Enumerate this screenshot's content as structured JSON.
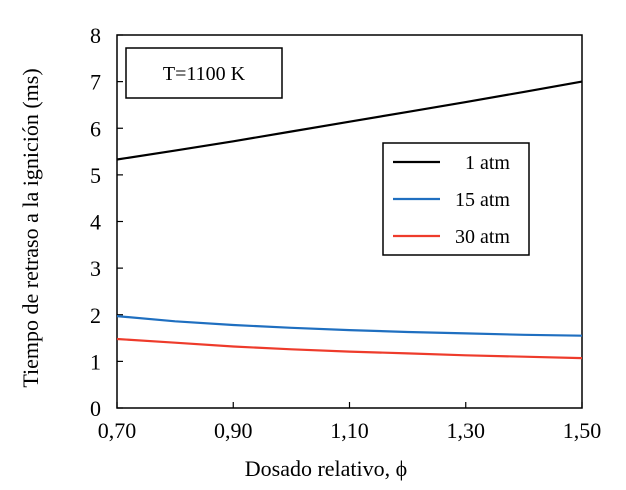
{
  "chart_data": {
    "type": "line",
    "title": "",
    "xlabel": "Dosado relativo, ϕ",
    "ylabel": "Tiempo de retraso a la ignición (ms)",
    "xlim": [
      0.7,
      1.5
    ],
    "ylim": [
      0,
      8
    ],
    "x_ticks": [
      0.7,
      0.9,
      1.1,
      1.3,
      1.5
    ],
    "x_tick_labels": [
      "0,70",
      "0,90",
      "1,10",
      "1,30",
      "1,50"
    ],
    "y_ticks": [
      0,
      1,
      2,
      3,
      4,
      5,
      6,
      7,
      8
    ],
    "y_tick_labels": [
      "0",
      "1",
      "2",
      "3",
      "4",
      "5",
      "6",
      "7",
      "8"
    ],
    "grid": false,
    "legend_position": "right",
    "annotation": "T=1100 K",
    "x": [
      0.7,
      0.8,
      0.9,
      1.0,
      1.1,
      1.2,
      1.3,
      1.4,
      1.5
    ],
    "series": [
      {
        "name": "1 atm",
        "color": "#000000",
        "values": [
          5.33,
          5.52,
          5.72,
          5.93,
          6.14,
          6.35,
          6.56,
          6.78,
          7.0
        ]
      },
      {
        "name": "15 atm",
        "color": "#1f6fc0",
        "values": [
          1.97,
          1.86,
          1.78,
          1.72,
          1.67,
          1.63,
          1.6,
          1.57,
          1.55
        ]
      },
      {
        "name": "30 atm",
        "color": "#ee3b2b",
        "values": [
          1.48,
          1.4,
          1.32,
          1.26,
          1.21,
          1.17,
          1.13,
          1.1,
          1.07
        ]
      }
    ]
  }
}
